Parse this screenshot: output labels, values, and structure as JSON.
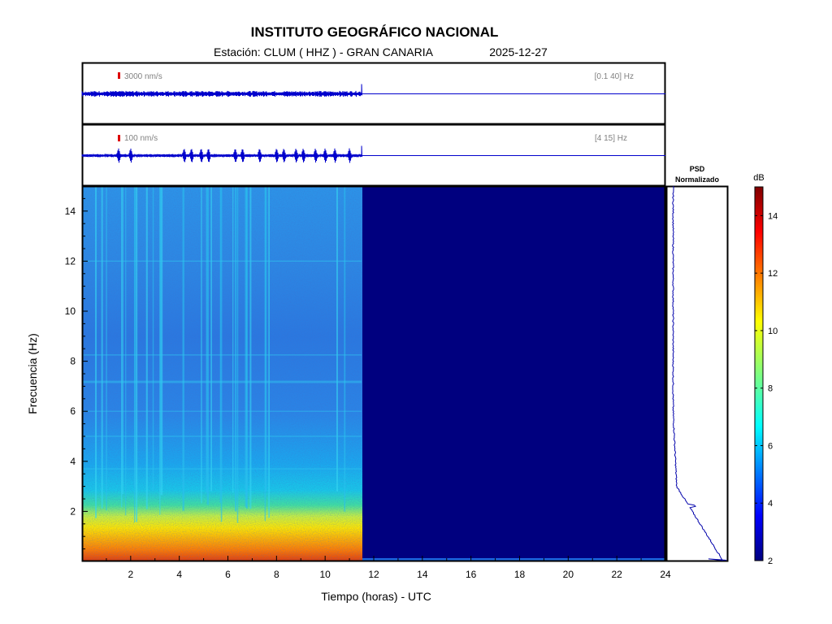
{
  "header": {
    "title": "INSTITUTO GEOGRÁFICO NACIONAL",
    "station_label": "Estación:  CLUM ( HHZ ) - GRAN CANARIA",
    "date": "2025-12-27"
  },
  "colors": {
    "trace": "#0000cc",
    "scale_mark": "#dd0000",
    "empty_spectrogram": "#00007f",
    "frame": "#000000"
  },
  "chart_data": [
    {
      "type": "line",
      "name": "broadband-trace",
      "amplitude_label": "3000 nm/s",
      "band_label": "[0.1 40] Hz",
      "x_range": [
        0,
        24
      ],
      "data_end_hour": 11.5
    },
    {
      "type": "line",
      "name": "filtered-trace",
      "amplitude_label": "100 nm/s",
      "band_label": "[4 15] Hz",
      "x_range": [
        0,
        24
      ],
      "data_end_hour": 11.5,
      "events_hours": [
        1.5,
        2.0,
        4.2,
        4.5,
        4.9,
        5.2,
        6.3,
        6.6,
        7.3,
        8.0,
        8.3,
        8.8,
        9.1,
        9.6,
        10.0,
        10.4,
        11.0
      ]
    },
    {
      "type": "heatmap",
      "name": "spectrogram",
      "xlabel": "Tiempo (horas) - UTC",
      "ylabel": "Frecuencia  (Hz)",
      "xlim": [
        0,
        24
      ],
      "ylim": [
        0,
        15
      ],
      "x_ticks": [
        2,
        4,
        6,
        8,
        10,
        12,
        14,
        16,
        18,
        20,
        22,
        24
      ],
      "y_ticks": [
        2,
        4,
        6,
        8,
        10,
        12,
        14
      ],
      "data_end_hour": 11.5
    },
    {
      "type": "line",
      "name": "psd",
      "title_line1": "PSD",
      "title_line2": "Normalizado",
      "ylim": [
        0,
        15
      ]
    },
    {
      "type": "colorbar",
      "unit": "dB",
      "range": [
        2,
        15
      ],
      "ticks": [
        2,
        4,
        6,
        8,
        10,
        12,
        14
      ]
    }
  ]
}
